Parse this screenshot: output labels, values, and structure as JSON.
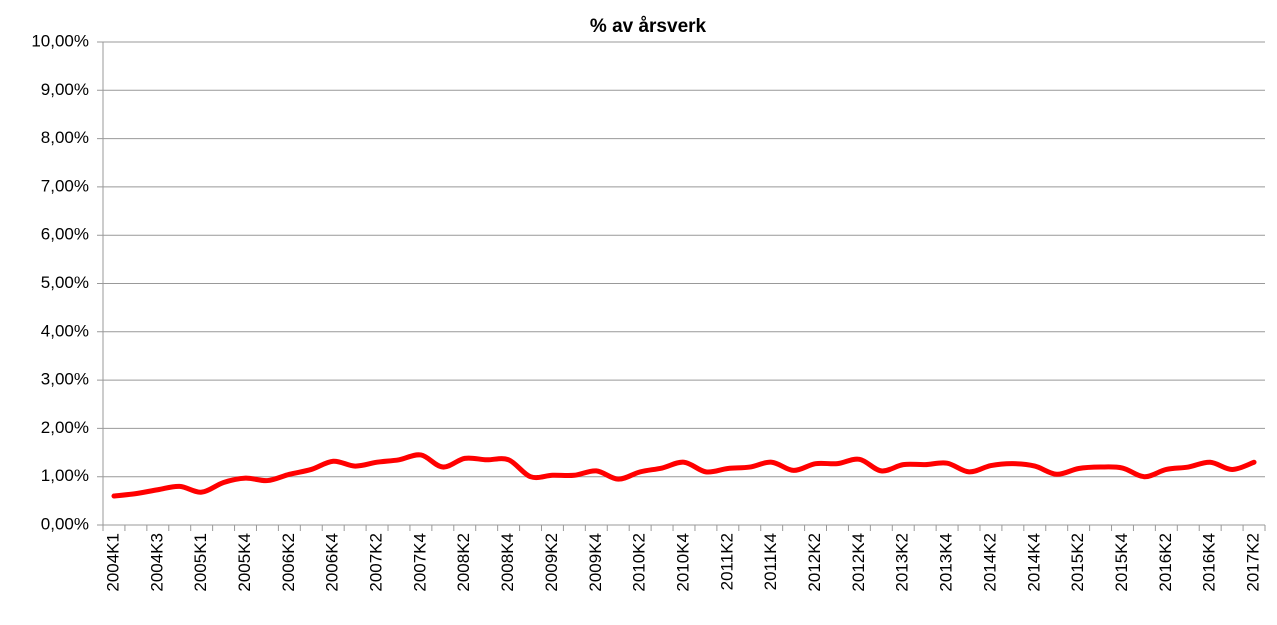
{
  "chart_data": {
    "type": "line",
    "title": "% av årsverk",
    "categories": [
      "2004K1",
      null,
      "2004K3",
      null,
      "2005K1",
      null,
      "2005K4",
      null,
      "2006K2",
      null,
      "2006K4",
      null,
      "2007K2",
      null,
      "2007K4",
      null,
      "2008K2",
      null,
      "2008K4",
      null,
      "2009K2",
      null,
      "2009K4",
      null,
      "2010K2",
      null,
      "2010K4",
      null,
      "2011K2",
      null,
      "2011K4",
      null,
      "2012K2",
      null,
      "2012K4",
      null,
      "2013K2",
      null,
      "2013K4",
      null,
      "2014K2",
      null,
      "2014K4",
      null,
      "2015K2",
      null,
      "2015K4",
      null,
      "2016K2",
      null,
      "2016K4",
      null,
      "2017K2"
    ],
    "values": [
      0.6,
      0.65,
      0.73,
      0.8,
      0.68,
      0.88,
      0.97,
      0.92,
      1.05,
      1.15,
      1.32,
      1.22,
      1.3,
      1.35,
      1.45,
      1.2,
      1.38,
      1.35,
      1.35,
      1.0,
      1.03,
      1.03,
      1.12,
      0.95,
      1.1,
      1.18,
      1.3,
      1.1,
      1.17,
      1.2,
      1.3,
      1.13,
      1.27,
      1.27,
      1.36,
      1.12,
      1.25,
      1.25,
      1.28,
      1.1,
      1.23,
      1.27,
      1.22,
      1.05,
      1.17,
      1.2,
      1.18,
      1.0,
      1.15,
      1.2,
      1.3,
      1.15,
      1.3
    ],
    "color": "#ff0000",
    "ylim": [
      0,
      10
    ],
    "yticks": [
      {
        "value": 0,
        "label": "0,00%"
      },
      {
        "value": 1,
        "label": "1,00%"
      },
      {
        "value": 2,
        "label": "2,00%"
      },
      {
        "value": 3,
        "label": "3,00%"
      },
      {
        "value": 4,
        "label": "4,00%"
      },
      {
        "value": 5,
        "label": "5,00%"
      },
      {
        "value": 6,
        "label": "6,00%"
      },
      {
        "value": 7,
        "label": "7,00%"
      },
      {
        "value": 8,
        "label": "8,00%"
      },
      {
        "value": 9,
        "label": "9,00%"
      },
      {
        "value": 10,
        "label": "10,00%"
      }
    ],
    "grid": true
  }
}
